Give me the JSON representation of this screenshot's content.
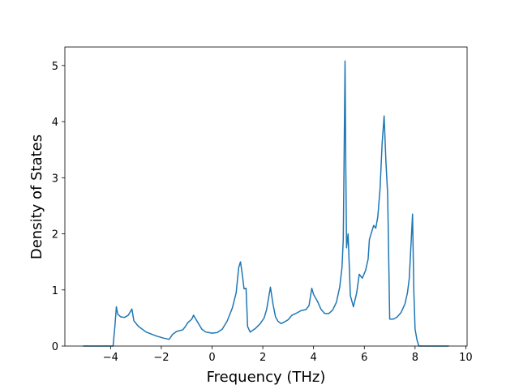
{
  "chart_data": {
    "type": "line",
    "xlabel": "Frequency (THz)",
    "ylabel": "Density of States",
    "x": [
      -5.08,
      -3.9,
      -3.83,
      -3.77,
      -3.72,
      -3.6,
      -3.45,
      -3.3,
      -3.16,
      -3.08,
      -2.9,
      -2.6,
      -2.2,
      -1.9,
      -1.69,
      -1.55,
      -1.4,
      -1.15,
      -1.05,
      -0.95,
      -0.8,
      -0.73,
      -0.6,
      -0.4,
      -0.25,
      0,
      0.2,
      0.4,
      0.6,
      0.8,
      0.95,
      1.05,
      1.12,
      1.2,
      1.26,
      1.34,
      1.4,
      1.5,
      1.7,
      1.9,
      2.05,
      2.15,
      2.3,
      2.4,
      2.5,
      2.6,
      2.72,
      2.85,
      3.0,
      3.15,
      3.3,
      3.5,
      3.7,
      3.82,
      3.93,
      4.0,
      4.15,
      4.3,
      4.44,
      4.6,
      4.75,
      4.9,
      5.03,
      5.12,
      5.17,
      5.2,
      5.24,
      5.27,
      5.3,
      5.36,
      5.45,
      5.57,
      5.7,
      5.8,
      5.92,
      6.05,
      6.15,
      6.2,
      6.3,
      6.37,
      6.45,
      6.53,
      6.62,
      6.7,
      6.78,
      6.85,
      6.92,
      7.0,
      7.15,
      7.3,
      7.45,
      7.6,
      7.7,
      7.77,
      7.85,
      7.9,
      7.95,
      8.0,
      8.08,
      8.15,
      9.33
    ],
    "series": [
      {
        "color": "#1f77b4",
        "values": [
          0,
          0,
          0.35,
          0.7,
          0.57,
          0.52,
          0.51,
          0.55,
          0.66,
          0.45,
          0.35,
          0.25,
          0.18,
          0.14,
          0.12,
          0.21,
          0.26,
          0.29,
          0.35,
          0.42,
          0.48,
          0.55,
          0.45,
          0.3,
          0.25,
          0.23,
          0.24,
          0.3,
          0.45,
          0.68,
          0.95,
          1.4,
          1.5,
          1.25,
          1.02,
          1.03,
          0.35,
          0.25,
          0.31,
          0.4,
          0.5,
          0.65,
          1.05,
          0.75,
          0.52,
          0.44,
          0.4,
          0.43,
          0.47,
          0.55,
          0.58,
          0.63,
          0.65,
          0.72,
          1.03,
          0.92,
          0.8,
          0.65,
          0.58,
          0.58,
          0.64,
          0.78,
          1.05,
          1.4,
          1.9,
          3.2,
          5.08,
          3.2,
          1.75,
          2.0,
          0.9,
          0.7,
          0.95,
          1.28,
          1.21,
          1.35,
          1.55,
          1.9,
          2.05,
          2.15,
          2.1,
          2.3,
          2.8,
          3.6,
          4.1,
          3.3,
          2.7,
          0.48,
          0.48,
          0.52,
          0.6,
          0.75,
          0.95,
          1.2,
          1.9,
          2.35,
          1.0,
          0.3,
          0.1,
          0,
          0
        ]
      }
    ],
    "xlim": [
      -5.8,
      10.05
    ],
    "ylim": [
      0,
      5.33
    ],
    "xticks": [
      {
        "value": -4,
        "label": "−4"
      },
      {
        "value": -2,
        "label": "−2"
      },
      0,
      2,
      4,
      6,
      8,
      10
    ],
    "yticks": [
      0,
      1,
      2,
      3,
      4,
      5
    ],
    "grid": false
  }
}
